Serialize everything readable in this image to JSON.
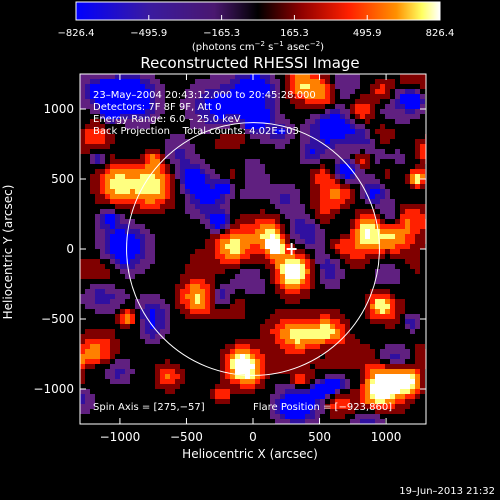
{
  "chart_data": {
    "type": "heatmap",
    "title": "Reconstructed RHESSI Image",
    "xlabel": "Heliocentric X (arcsec)",
    "ylabel": "Heliocentric Y (arcsec)",
    "xlim": [
      -1300,
      1300
    ],
    "ylim": [
      -1250,
      1250
    ],
    "x_ticks": [
      -1000,
      -500,
      0,
      500,
      1000
    ],
    "y_ticks": [
      -1000,
      -500,
      0,
      500,
      1000
    ],
    "x_tick_labels": [
      "−1000",
      "−500",
      "0",
      "500",
      "1000"
    ],
    "y_tick_labels": [
      "−1000",
      "−500",
      "0",
      "500",
      "1000"
    ],
    "colorbar": {
      "ticks": [
        -826.4,
        -495.9,
        -165.3,
        165.3,
        495.9,
        826.4
      ],
      "tick_labels": [
        "−826.4",
        "−495.9",
        "−165.3",
        "165.3",
        "495.9",
        "826.4"
      ],
      "unit_main": "(photons cm",
      "unit_sup1": "−2",
      "unit_mid": " s",
      "unit_sup2": "−1",
      "unit_mid2": " asec",
      "unit_sup3": "−2",
      "unit_end": ")",
      "colormap": [
        "#0000ff",
        "#3010a0",
        "#602080",
        "#000000",
        "#800000",
        "#ff2000",
        "#ff8000",
        "#ffff80",
        "#ffffff"
      ]
    },
    "value_range": [
      -826.4,
      826.4
    ],
    "solar_limb_radius": 950,
    "solar_limb_center": [
      0,
      0
    ],
    "flare_marker": [
      290,
      0
    ],
    "annotations": {
      "time": "23–May–2004 20:43:12.000 to 20:45:28.000",
      "detectors": "Detectors: 7F 8F 9F, Att 0",
      "energy": "Energy Range: 6.0 – 25.0 keV",
      "method": "Back Projection    Total counts: 4.02E+03",
      "spin_axis": "Spin Axis = [275,−57]",
      "flare_position": "Flare Position = [−923,860]"
    },
    "grid": false
  },
  "footer": {
    "timestamp": "19–Jun–2013 21:32"
  }
}
